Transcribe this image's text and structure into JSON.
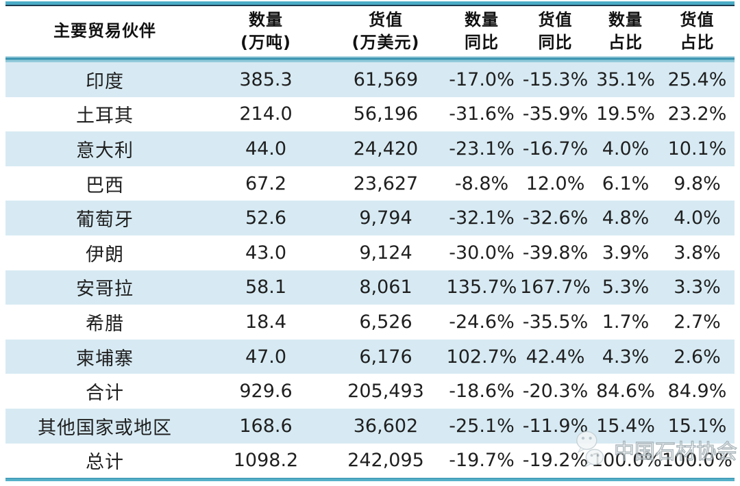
{
  "chart_data": {
    "type": "table",
    "title": "",
    "columns": [
      {
        "line1": "主要贸易伙伴",
        "line2": ""
      },
      {
        "line1": "数量",
        "line2": "(万吨)"
      },
      {
        "line1": "货值",
        "line2": "(万美元)"
      },
      {
        "line1": "数量",
        "line2": "同比"
      },
      {
        "line1": "货值",
        "line2": "同比"
      },
      {
        "line1": "数量",
        "line2": "占比"
      },
      {
        "line1": "货值",
        "line2": "占比"
      }
    ],
    "rows": [
      [
        "印度",
        "385.3",
        "61,569",
        "-17.0%",
        "-15.3%",
        "35.1%",
        "25.4%"
      ],
      [
        "土耳其",
        "214.0",
        "56,196",
        "-31.6%",
        "-35.9%",
        "19.5%",
        "23.2%"
      ],
      [
        "意大利",
        "44.0",
        "24,420",
        "-23.1%",
        "-16.7%",
        "4.0%",
        "10.1%"
      ],
      [
        "巴西",
        "67.2",
        "23,627",
        "-8.8%",
        "12.0%",
        "6.1%",
        "9.8%"
      ],
      [
        "葡萄牙",
        "52.6",
        "9,794",
        "-32.1%",
        "-32.6%",
        "4.8%",
        "4.0%"
      ],
      [
        "伊朗",
        "43.0",
        "9,124",
        "-30.0%",
        "-39.8%",
        "3.9%",
        "3.8%"
      ],
      [
        "安哥拉",
        "58.1",
        "8,061",
        "135.7%",
        "167.7%",
        "5.3%",
        "3.3%"
      ],
      [
        "希腊",
        "18.4",
        "6,526",
        "-24.6%",
        "-35.5%",
        "1.7%",
        "2.7%"
      ],
      [
        "柬埔寨",
        "47.0",
        "6,176",
        "102.7%",
        "42.4%",
        "4.3%",
        "2.6%"
      ],
      [
        "合计",
        "929.6",
        "205,493",
        "-18.6%",
        "-20.3%",
        "84.6%",
        "84.9%"
      ],
      [
        "其他国家或地区",
        "168.6",
        "36,602",
        "-25.1%",
        "-11.9%",
        "15.4%",
        "15.1%"
      ],
      [
        "总计",
        "1098.2",
        "242,095",
        "-19.7%",
        "-19.2%",
        "100.0%",
        "100.0%"
      ]
    ]
  },
  "watermark": {
    "text": "中国石材协会",
    "icon": "wechat-icon"
  },
  "colors": {
    "border_teal": "#4bacc6",
    "border_dark": "#1c3a4e",
    "row_alt_blue": "#d7eaf3",
    "row_white": "#ffffff",
    "text": "#1f1f1f",
    "watermark_gray": "#9eaab0"
  }
}
